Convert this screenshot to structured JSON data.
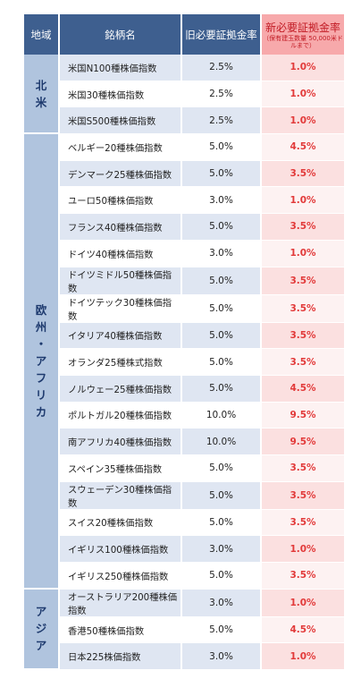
{
  "header": {
    "region": "地域",
    "name": "銘柄名",
    "old_margin": "旧必要証拠金率",
    "new_margin": "新必要証拠金率",
    "new_margin_note": "（保有建玉数量 50,000米ドルまで）"
  },
  "groups": [
    {
      "region": "北米",
      "rows": [
        {
          "name": "米国N100種株価指数",
          "old": "2.5%",
          "new": "1.0%"
        },
        {
          "name": "米国30種株価指数",
          "old": "2.5%",
          "new": "1.0%"
        },
        {
          "name": "米国S500種株価指数",
          "old": "2.5%",
          "new": "1.0%"
        }
      ]
    },
    {
      "region": "欧州・アフリカ",
      "rows": [
        {
          "name": "ベルギー20種株価指数",
          "old": "5.0%",
          "new": "4.5%"
        },
        {
          "name": "デンマーク25種株価指数",
          "old": "5.0%",
          "new": "3.5%"
        },
        {
          "name": "ユーロ50種株価指数",
          "old": "3.0%",
          "new": "1.0%"
        },
        {
          "name": "フランス40種株価指数",
          "old": "5.0%",
          "new": "3.5%"
        },
        {
          "name": "ドイツ40種株価指数",
          "old": "3.0%",
          "new": "1.0%"
        },
        {
          "name": "ドイツミドル50種株価指数",
          "old": "5.0%",
          "new": "3.5%"
        },
        {
          "name": "ドイツテック30種株価指数",
          "old": "5.0%",
          "new": "3.5%"
        },
        {
          "name": "イタリア40種株価指数",
          "old": "5.0%",
          "new": "3.5%"
        },
        {
          "name": "オランダ25種株式指数",
          "old": "5.0%",
          "new": "3.5%"
        },
        {
          "name": "ノルウェー25種株価指数",
          "old": "5.0%",
          "new": "4.5%"
        },
        {
          "name": "ポルトガル20種株価指数",
          "old": "10.0%",
          "new": "9.5%"
        },
        {
          "name": "南アフリカ40種株価指数",
          "old": "10.0%",
          "new": "9.5%"
        },
        {
          "name": "スペイン35種株価指数",
          "old": "5.0%",
          "new": "3.5%"
        },
        {
          "name": "スウェーデン30種株価指数",
          "old": "5.0%",
          "new": "3.5%"
        },
        {
          "name": "スイス20種株価指数",
          "old": "5.0%",
          "new": "3.5%"
        },
        {
          "name": "イギリス100種株価指数",
          "old": "3.0%",
          "new": "1.0%"
        },
        {
          "name": "イギリス250種株価指数",
          "old": "5.0%",
          "new": "3.5%"
        }
      ]
    },
    {
      "region": "アジア",
      "rows": [
        {
          "name": "オーストラリア200種株価指数",
          "old": "3.0%",
          "new": "1.0%"
        },
        {
          "name": "香港50種株価指数",
          "old": "5.0%",
          "new": "4.5%"
        },
        {
          "name": "日本225株価指数",
          "old": "3.0%",
          "new": "1.0%"
        }
      ]
    }
  ],
  "colors": {
    "header_blue": "#3e5f8f",
    "header_pink": "#f7a9ab",
    "region_blue": "#b0c4de",
    "new_rate_red": "#e23a3a"
  }
}
